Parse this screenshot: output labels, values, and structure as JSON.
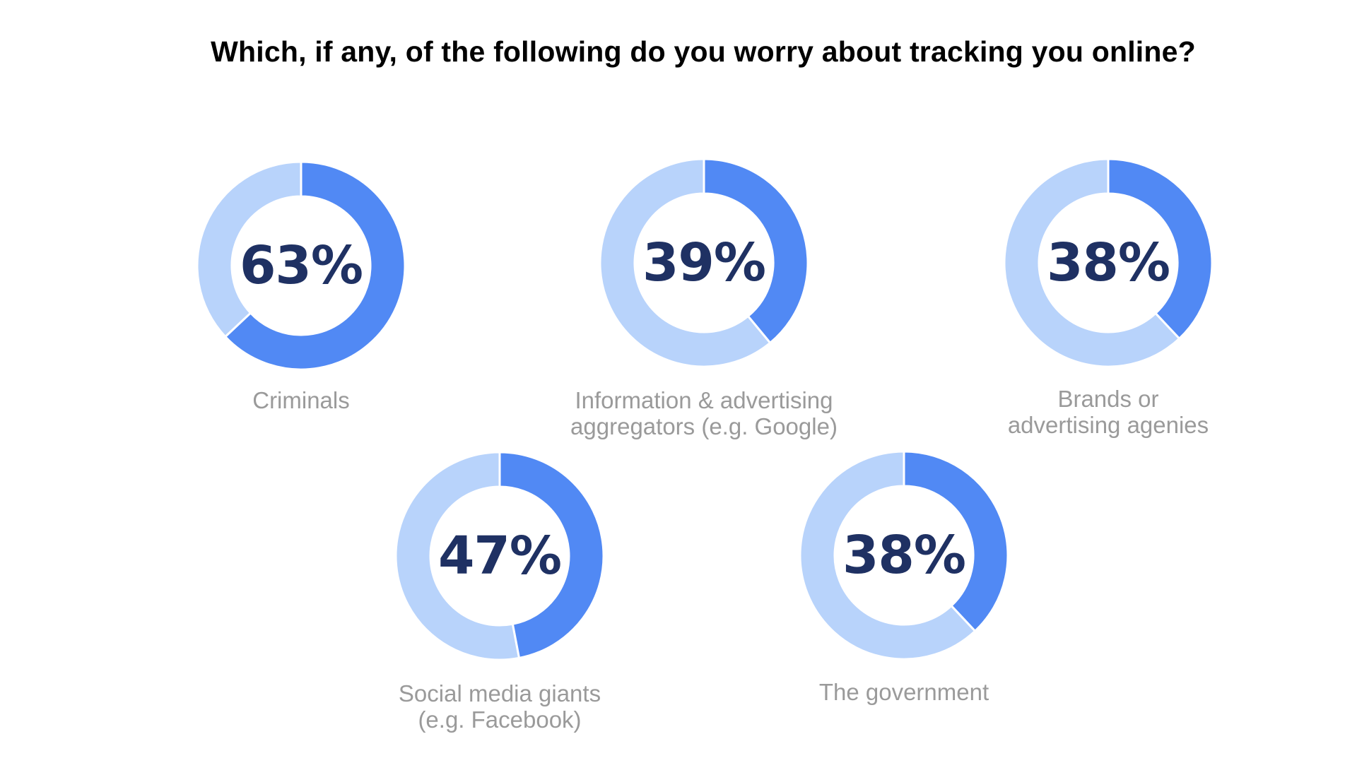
{
  "chart_data": {
    "type": "pie",
    "variant": "donut",
    "title": "Which, if any, of the following do you worry about tracking you online?",
    "categories": [
      "Criminals",
      "Information & advertising aggregators (e.g. Google)",
      "Brands or advertising agenies",
      "Social media giants (e.g. Facebook)",
      "The government"
    ],
    "values": [
      63,
      39,
      38,
      47,
      38
    ],
    "unit": "%",
    "items": [
      {
        "value": 63,
        "value_label": "63%",
        "label_lines": [
          "Criminals"
        ]
      },
      {
        "value": 39,
        "value_label": "39%",
        "label_lines": [
          "Information & advertising",
          "aggregators (e.g. Google)"
        ]
      },
      {
        "value": 38,
        "value_label": "38%",
        "label_lines": [
          "Brands or",
          "advertising agenies"
        ]
      },
      {
        "value": 47,
        "value_label": "47%",
        "label_lines": [
          "Social media giants",
          "(e.g. Facebook)"
        ]
      },
      {
        "value": 38,
        "value_label": "38%",
        "label_lines": [
          "The government"
        ]
      }
    ],
    "colors": {
      "filled": "#5189f4",
      "remainder": "#b8d3fb",
      "value_text": "#1f3163",
      "label_text": "#9a9a9a"
    }
  }
}
